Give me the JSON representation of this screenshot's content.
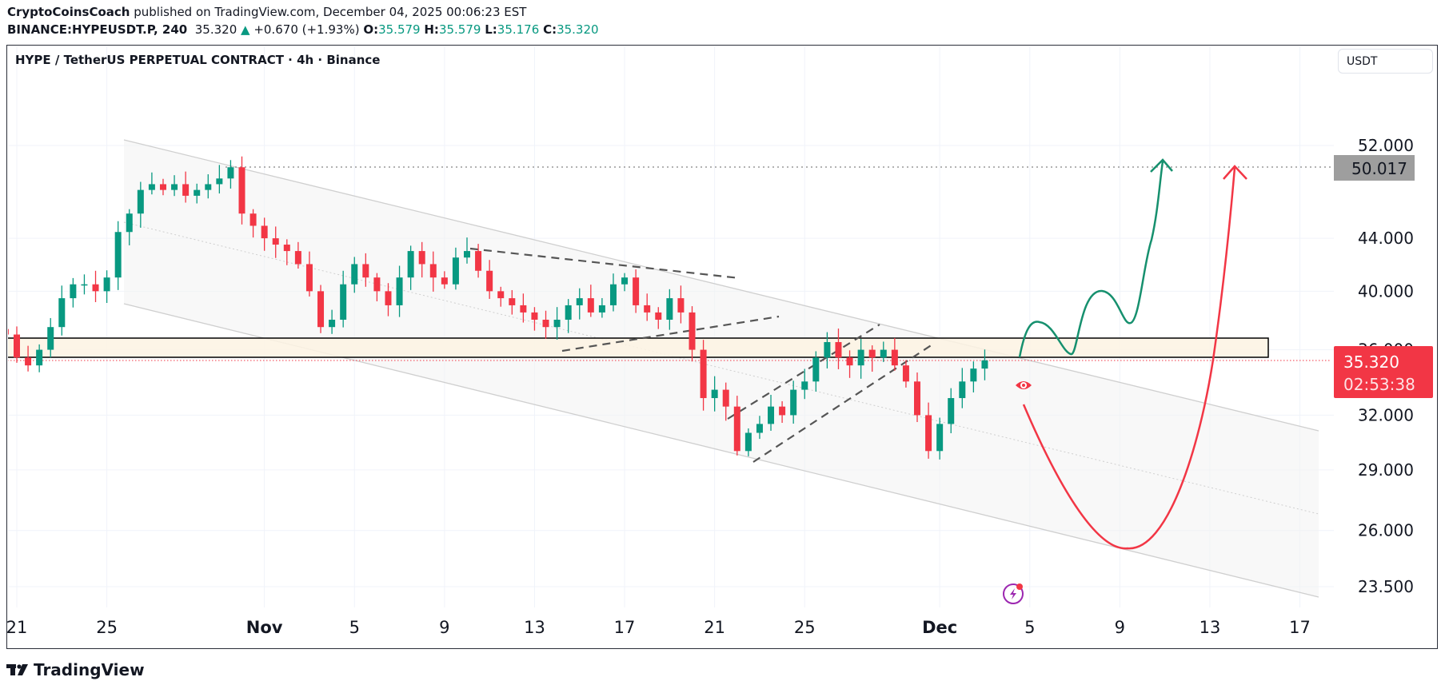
{
  "header": {
    "author": "CryptoCoinsCoach",
    "published_text": "published on TradingView.com, December 04, 2025 00:06:23 EST",
    "symbol": "BINANCE:HYPEUSDT.P, 240",
    "last": "35.320",
    "change": "+0.670 (+1.93%)",
    "o_label": "O:",
    "o": "35.579",
    "h_label": "H:",
    "h": "35.579",
    "l_label": "L:",
    "l": "35.176",
    "c_label": "C:",
    "c": "35.320"
  },
  "chart_title": "HYPE / TetherUS PERPETUAL CONTRACT · 4h · Binance",
  "currency_button": "USDT",
  "colors": {
    "up": "#089981",
    "down": "#f23645",
    "zone": "#fdf3e3",
    "projection_up": "#16906e",
    "projection_down": "#f23645"
  },
  "chart_data": {
    "type": "candlestick",
    "scale": "log",
    "interval": "4h",
    "sample_start": "2025-10-20 12:00",
    "sample_step_hours": 12,
    "closes": [
      37,
      35.5,
      35,
      36,
      37.5,
      39.5,
      40.5,
      40.5,
      40,
      41,
      44.5,
      46,
      48,
      48.5,
      48,
      48.5,
      47.5,
      48,
      48.5,
      49,
      50,
      46,
      45,
      44,
      43.5,
      43,
      42,
      40,
      37.5,
      38,
      40.5,
      42,
      41,
      40,
      39,
      41,
      43,
      42,
      41,
      40.5,
      42.5,
      43,
      41.5,
      40,
      39.5,
      39,
      38.5,
      38,
      37.5,
      38,
      39,
      39.5,
      38.5,
      39,
      40.5,
      41,
      39,
      38.5,
      38,
      39.5,
      38.5,
      36,
      33,
      33.5,
      32.5,
      30,
      31,
      31.5,
      32.5,
      32,
      33.5,
      34,
      35.5,
      36.5,
      35.5,
      35,
      36,
      35.5,
      36,
      35,
      34,
      32,
      30,
      31.5,
      33,
      34,
      34.8,
      35.32
    ],
    "y_ticks": [
      "52.000",
      "44.000",
      "40.000",
      "36.000",
      "32.000",
      "29.000",
      "26.000",
      "23.500"
    ],
    "y_tick_values": [
      52,
      44,
      40,
      36,
      32,
      29,
      26,
      23.5
    ],
    "x_ticks": [
      {
        "label": "21",
        "date": "2025-10-21"
      },
      {
        "label": "25",
        "date": "2025-10-25"
      },
      {
        "label": "Nov",
        "date": "2025-11-01",
        "bold": true
      },
      {
        "label": "5",
        "date": "2025-11-05"
      },
      {
        "label": "9",
        "date": "2025-11-09"
      },
      {
        "label": "13",
        "date": "2025-11-13"
      },
      {
        "label": "17",
        "date": "2025-11-17"
      },
      {
        "label": "21",
        "date": "2025-11-21"
      },
      {
        "label": "25",
        "date": "2025-11-25"
      },
      {
        "label": "Dec",
        "date": "2025-12-01",
        "bold": true
      },
      {
        "label": "5",
        "date": "2025-12-05"
      },
      {
        "label": "9",
        "date": "2025-12-09"
      },
      {
        "label": "13",
        "date": "2025-12-13"
      },
      {
        "label": "17",
        "date": "2025-12-17"
      }
    ],
    "target_price_label": "50.017",
    "current_price_label": "35.320",
    "countdown": "02:53:38",
    "support_zone": [
      35.7,
      37.0
    ],
    "grid": true
  },
  "branding": "TradingView"
}
